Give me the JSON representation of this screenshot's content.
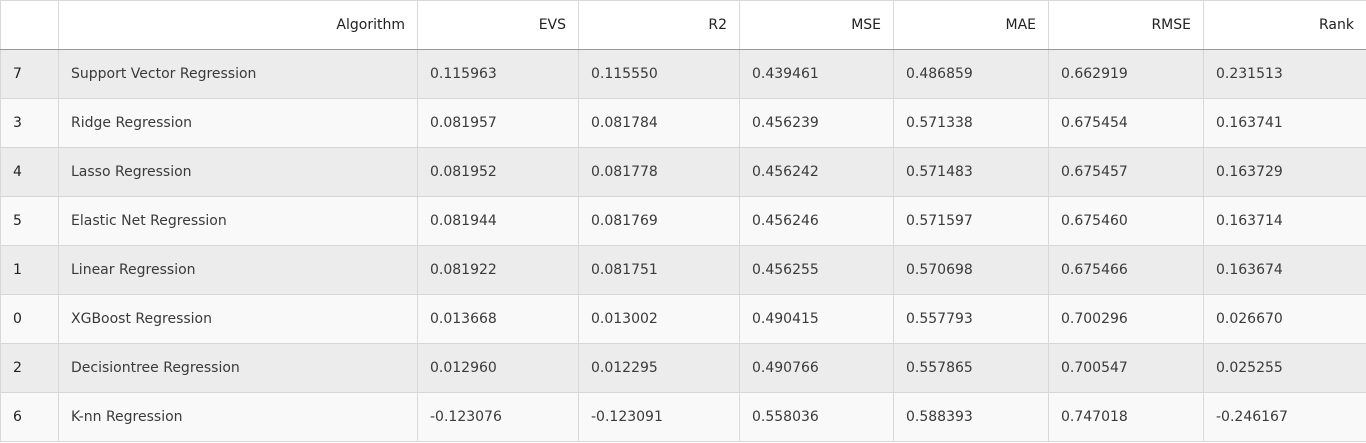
{
  "table": {
    "headers": [
      "",
      "Algorithm",
      "EVS",
      "R2",
      "MSE",
      "MAE",
      "RMSE",
      "Rank"
    ],
    "rows": [
      {
        "index": "7",
        "algorithm": "Support Vector Regression",
        "evs": "0.115963",
        "r2": "0.115550",
        "mse": "0.439461",
        "mae": "0.486859",
        "rmse": "0.662919",
        "rank": "0.231513"
      },
      {
        "index": "3",
        "algorithm": "Ridge Regression",
        "evs": "0.081957",
        "r2": "0.081784",
        "mse": "0.456239",
        "mae": "0.571338",
        "rmse": "0.675454",
        "rank": "0.163741"
      },
      {
        "index": "4",
        "algorithm": "Lasso Regression",
        "evs": "0.081952",
        "r2": "0.081778",
        "mse": "0.456242",
        "mae": "0.571483",
        "rmse": "0.675457",
        "rank": "0.163729"
      },
      {
        "index": "5",
        "algorithm": "Elastic Net Regression",
        "evs": "0.081944",
        "r2": "0.081769",
        "mse": "0.456246",
        "mae": "0.571597",
        "rmse": "0.675460",
        "rank": "0.163714"
      },
      {
        "index": "1",
        "algorithm": "Linear Regression",
        "evs": "0.081922",
        "r2": "0.081751",
        "mse": "0.456255",
        "mae": "0.570698",
        "rmse": "0.675466",
        "rank": "0.163674"
      },
      {
        "index": "0",
        "algorithm": "XGBoost Regression",
        "evs": "0.013668",
        "r2": "0.013002",
        "mse": "0.490415",
        "mae": "0.557793",
        "rmse": "0.700296",
        "rank": "0.026670"
      },
      {
        "index": "2",
        "algorithm": "Decisiontree Regression",
        "evs": "0.012960",
        "r2": "0.012295",
        "mse": "0.490766",
        "mae": "0.557865",
        "rmse": "0.700547",
        "rank": "0.025255"
      },
      {
        "index": "6",
        "algorithm": "K-nn Regression",
        "evs": "-0.123076",
        "r2": "-0.123091",
        "mse": "0.558036",
        "mae": "0.588393",
        "rmse": "0.747018",
        "rank": "-0.246167"
      }
    ]
  }
}
